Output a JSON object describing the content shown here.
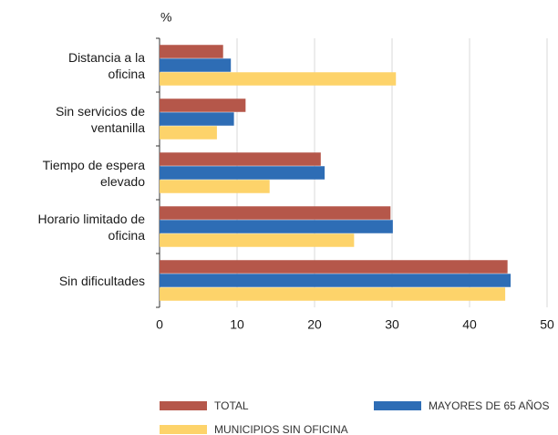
{
  "chart_data": {
    "type": "barh",
    "y_unit_label": "%",
    "categories": [
      "Distancia a la\noficina",
      "Sin servicios de\nventanilla",
      "Tiempo de espera\nelevado",
      "Horario limitado de\noficina",
      "Sin dificultades"
    ],
    "series": [
      {
        "name": "TOTAL",
        "color": "#b5574a",
        "values": [
          8.2,
          11.1,
          20.8,
          29.8,
          44.9
        ]
      },
      {
        "name": "MAYORES DE 65 AÑOS",
        "color": "#2e6db5",
        "values": [
          9.2,
          9.6,
          21.3,
          30.1,
          45.3
        ]
      },
      {
        "name": "MUNICIPIOS SIN OFICINA",
        "color": "#fdd36a",
        "values": [
          30.5,
          7.4,
          14.2,
          25.1,
          44.6
        ]
      }
    ],
    "xlim": [
      0,
      50
    ],
    "xticks": [
      0,
      10,
      20,
      30,
      40,
      50
    ],
    "grid": true
  }
}
